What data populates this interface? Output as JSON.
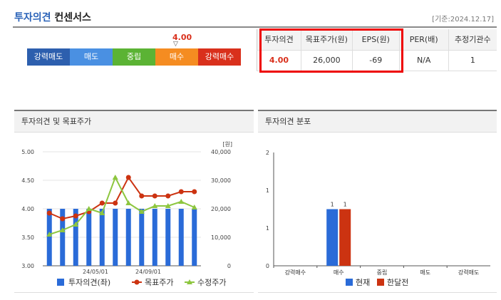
{
  "header": {
    "title_main": "투자의견",
    "title_sub": "컨센서스",
    "date": "[기준:2024.12.17]"
  },
  "rating_scale": {
    "current_value": "4.00",
    "segments": [
      {
        "label": "강력매도",
        "color": "#2d5fae"
      },
      {
        "label": "매도",
        "color": "#4a90e2"
      },
      {
        "label": "중립",
        "color": "#5bb334"
      },
      {
        "label": "매수",
        "color": "#f58c21"
      },
      {
        "label": "강력매수",
        "color": "#d9301c"
      }
    ]
  },
  "consensus_table": {
    "headers": [
      "투자의견",
      "목표주가(원)",
      "EPS(원)",
      "PER(배)",
      "추정기관수"
    ],
    "values": [
      "4.00",
      "26,000",
      "-69",
      "N/A",
      "1"
    ]
  },
  "chart1": {
    "panel_title": "투자의견 및 목표주가"
  },
  "chart2": {
    "panel_title": "투자의견 분포"
  },
  "chart_data": [
    {
      "type": "line",
      "title": "투자의견 및 목표주가",
      "y_left_label": "",
      "y_right_unit": "[원]",
      "y_left_ticks": [
        "5.00",
        "4.50",
        "4.00",
        "3.50",
        "3.00"
      ],
      "y_right_ticks": [
        "40,000",
        "30,000",
        "20,000",
        "10,000",
        "0"
      ],
      "ylim_left": [
        3.0,
        5.0
      ],
      "ylim_right": [
        0,
        40000
      ],
      "x_tick_labels": [
        "24/05/01",
        "24/09/01"
      ],
      "series": [
        {
          "name": "투자의견(좌)",
          "kind": "bar",
          "axis": "left",
          "color": "#2a6bd8",
          "values": [
            4.0,
            4.0,
            4.0,
            4.0,
            4.0,
            4.0,
            4.0,
            4.0,
            4.0,
            4.0,
            4.0,
            4.0
          ]
        },
        {
          "name": "목표주가",
          "kind": "line",
          "axis": "right",
          "color": "#cc3311",
          "values": [
            18500,
            16500,
            17500,
            19000,
            22000,
            22000,
            31000,
            24500,
            24500,
            24500,
            26000,
            26000
          ]
        },
        {
          "name": "수정주가",
          "kind": "line",
          "axis": "right",
          "color": "#8dc63f",
          "values": [
            11000,
            12500,
            14500,
            20000,
            18500,
            31000,
            22000,
            19000,
            21000,
            21000,
            22500,
            20500
          ]
        }
      ]
    },
    {
      "type": "bar",
      "title": "투자의견 분포",
      "categories": [
        "강력매수",
        "매수",
        "중립",
        "매도",
        "강력매도"
      ],
      "ylim": [
        0,
        2
      ],
      "y_ticks": [
        "2",
        "1",
        "1",
        "0"
      ],
      "series": [
        {
          "name": "현재",
          "color": "#2a6bd8",
          "values": [
            0,
            1,
            0,
            0,
            0
          ]
        },
        {
          "name": "한달전",
          "color": "#cc3311",
          "values": [
            0,
            1,
            0,
            0,
            0
          ]
        }
      ]
    }
  ]
}
